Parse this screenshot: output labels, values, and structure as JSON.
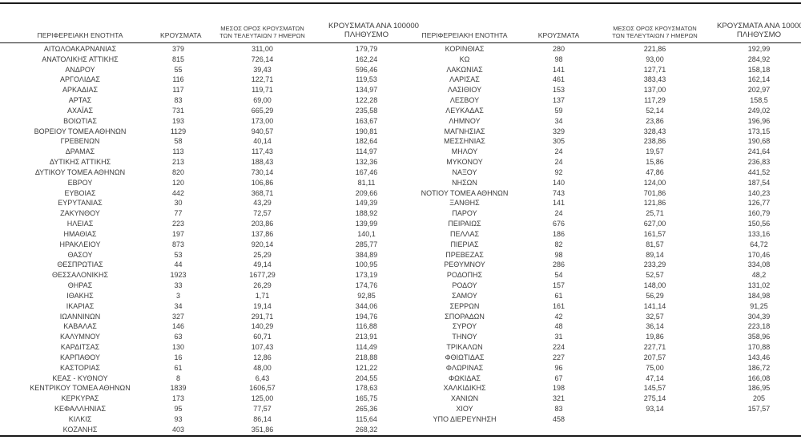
{
  "table": {
    "columns": {
      "region": "ΠΕΡΙΦΕΡΕΙΑΚΗ ΕΝΟΤΗΤΑ",
      "cases": "ΚΡΟΥΣΜΑΤΑ",
      "avg7_line1": "ΜΕΣΟΣ ΟΡΟΣ ΚΡΟΥΣΜΑΤΩΝ",
      "avg7_line2": "ΤΩΝ ΤΕΛΕΥΤΑΙΩΝ 7 ΗΜΕΡΩΝ",
      "per100k_line1": "ΚΡΟΥΣΜΑΤΑ ΑΝΑ 100000",
      "per100k_line2": "ΠΛΗΘΥΣΜΟ"
    },
    "left_rows": [
      [
        "ΑΙΤΩΛΟΑΚΑΡΝΑΝΙΑΣ",
        "379",
        "311,00",
        "179,79"
      ],
      [
        "ΑΝΑΤΟΛΙΚΗΣ ΑΤΤΙΚΗΣ",
        "815",
        "726,14",
        "162,24"
      ],
      [
        "ΑΝΔΡΟΥ",
        "55",
        "39,43",
        "596,46"
      ],
      [
        "ΑΡΓΟΛΙΔΑΣ",
        "116",
        "122,71",
        "119,53"
      ],
      [
        "ΑΡΚΑΔΙΑΣ",
        "117",
        "119,71",
        "134,97"
      ],
      [
        "ΑΡΤΑΣ",
        "83",
        "69,00",
        "122,28"
      ],
      [
        "ΑΧΑΪΑΣ",
        "731",
        "665,29",
        "235,58"
      ],
      [
        "ΒΟΙΩΤΙΑΣ",
        "193",
        "173,00",
        "163,67"
      ],
      [
        "ΒΟΡΕΙΟΥ ΤΟΜΕΑ ΑΘΗΝΩΝ",
        "1129",
        "940,57",
        "190,81"
      ],
      [
        "ΓΡΕΒΕΝΩΝ",
        "58",
        "40,14",
        "182,64"
      ],
      [
        "ΔΡΑΜΑΣ",
        "113",
        "117,43",
        "114,97"
      ],
      [
        "ΔΥΤΙΚΗΣ ΑΤΤΙΚΗΣ",
        "213",
        "188,43",
        "132,36"
      ],
      [
        "ΔΥΤΙΚΟΥ ΤΟΜΕΑ ΑΘΗΝΩΝ",
        "820",
        "730,14",
        "167,46"
      ],
      [
        "ΕΒΡΟΥ",
        "120",
        "106,86",
        "81,11"
      ],
      [
        "ΕΥΒΟΙΑΣ",
        "442",
        "368,71",
        "209,66"
      ],
      [
        "ΕΥΡΥΤΑΝΙΑΣ",
        "30",
        "43,29",
        "149,39"
      ],
      [
        "ΖΑΚΥΝΘΟΥ",
        "77",
        "72,57",
        "188,92"
      ],
      [
        "ΗΛΕΙΑΣ",
        "223",
        "203,86",
        "139,99"
      ],
      [
        "ΗΜΑΘΙΑΣ",
        "197",
        "137,86",
        "140,1"
      ],
      [
        "ΗΡΑΚΛΕΙΟΥ",
        "873",
        "920,14",
        "285,77"
      ],
      [
        "ΘΑΣΟΥ",
        "53",
        "25,29",
        "384,89"
      ],
      [
        "ΘΕΣΠΡΩΤΙΑΣ",
        "44",
        "49,14",
        "100,95"
      ],
      [
        "ΘΕΣΣΑΛΟΝΙΚΗΣ",
        "1923",
        "1677,29",
        "173,19"
      ],
      [
        "ΘΗΡΑΣ",
        "33",
        "26,29",
        "174,76"
      ],
      [
        "ΙΘΑΚΗΣ",
        "3",
        "1,71",
        "92,85"
      ],
      [
        "ΙΚΑΡΙΑΣ",
        "34",
        "19,14",
        "344,06"
      ],
      [
        "ΙΩΑΝΝΙΝΩΝ",
        "327",
        "291,71",
        "194,76"
      ],
      [
        "ΚΑΒΑΛΑΣ",
        "146",
        "140,29",
        "116,88"
      ],
      [
        "ΚΑΛΥΜΝΟΥ",
        "63",
        "60,71",
        "213,91"
      ],
      [
        "ΚΑΡΔΙΤΣΑΣ",
        "130",
        "107,43",
        "114,49"
      ],
      [
        "ΚΑΡΠΑΘΟΥ",
        "16",
        "12,86",
        "218,88"
      ],
      [
        "ΚΑΣΤΟΡΙΑΣ",
        "61",
        "48,00",
        "121,22"
      ],
      [
        "ΚΕΑΣ - ΚΥΘΝΟΥ",
        "8",
        "6,43",
        "204,55"
      ],
      [
        "ΚΕΝΤΡΙΚΟΥ ΤΟΜΕΑ ΑΘΗΝΩΝ",
        "1839",
        "1606,57",
        "178,63"
      ],
      [
        "ΚΕΡΚΥΡΑΣ",
        "173",
        "125,00",
        "165,75"
      ],
      [
        "ΚΕΦΑΛΛΗΝΙΑΣ",
        "95",
        "77,57",
        "265,36"
      ],
      [
        "ΚΙΛΚΙΣ",
        "93",
        "86,14",
        "115,64"
      ],
      [
        "ΚΟΖΑΝΗΣ",
        "403",
        "351,86",
        "268,32"
      ]
    ],
    "right_rows": [
      [
        "ΚΟΡΙΝΘΙΑΣ",
        "280",
        "221,86",
        "192,99"
      ],
      [
        "ΚΩ",
        "98",
        "93,00",
        "284,92"
      ],
      [
        "ΛΑΚΩΝΙΑΣ",
        "141",
        "127,71",
        "158,18"
      ],
      [
        "ΛΑΡΙΣΑΣ",
        "461",
        "383,43",
        "162,14"
      ],
      [
        "ΛΑΣΙΘΙΟΥ",
        "153",
        "137,00",
        "202,97"
      ],
      [
        "ΛΕΣΒΟΥ",
        "137",
        "117,29",
        "158,5"
      ],
      [
        "ΛΕΥΚΑΔΑΣ",
        "59",
        "52,14",
        "249,02"
      ],
      [
        "ΛΗΜΝΟΥ",
        "34",
        "23,86",
        "196,96"
      ],
      [
        "ΜΑΓΝΗΣΙΑΣ",
        "329",
        "328,43",
        "173,15"
      ],
      [
        "ΜΕΣΣΗΝΙΑΣ",
        "305",
        "238,86",
        "190,68"
      ],
      [
        "ΜΗΛΟΥ",
        "24",
        "19,57",
        "241,64"
      ],
      [
        "ΜΥΚΟΝΟΥ",
        "24",
        "15,86",
        "236,83"
      ],
      [
        "ΝΑΞΟΥ",
        "92",
        "47,86",
        "441,52"
      ],
      [
        "ΝΗΣΩΝ",
        "140",
        "124,00",
        "187,54"
      ],
      [
        "ΝΟΤΙΟΥ ΤΟΜΕΑ ΑΘΗΝΩΝ",
        "743",
        "701,86",
        "140,23"
      ],
      [
        "ΞΑΝΘΗΣ",
        "141",
        "121,86",
        "126,77"
      ],
      [
        "ΠΑΡΟΥ",
        "24",
        "25,71",
        "160,79"
      ],
      [
        "ΠΕΙΡΑΙΩΣ",
        "676",
        "627,00",
        "150,56"
      ],
      [
        "ΠΕΛΛΑΣ",
        "186",
        "161,57",
        "133,16"
      ],
      [
        "ΠΙΕΡΙΑΣ",
        "82",
        "81,57",
        "64,72"
      ],
      [
        "ΠΡΕΒΕΖΑΣ",
        "98",
        "89,14",
        "170,46"
      ],
      [
        "ΡΕΘΥΜΝΟΥ",
        "286",
        "233,29",
        "334,08"
      ],
      [
        "ΡΟΔΟΠΗΣ",
        "54",
        "52,57",
        "48,2"
      ],
      [
        "ΡΟΔΟΥ",
        "157",
        "148,00",
        "131,02"
      ],
      [
        "ΣΑΜΟΥ",
        "61",
        "56,29",
        "184,98"
      ],
      [
        "ΣΕΡΡΩΝ",
        "161",
        "141,14",
        "91,25"
      ],
      [
        "ΣΠΟΡΑΔΩΝ",
        "42",
        "32,57",
        "304,39"
      ],
      [
        "ΣΥΡΟΥ",
        "48",
        "36,14",
        "223,18"
      ],
      [
        "ΤΗΝΟΥ",
        "31",
        "19,86",
        "358,96"
      ],
      [
        "ΤΡΙΚΑΛΩΝ",
        "224",
        "227,71",
        "170,88"
      ],
      [
        "ΦΘΙΩΤΙΔΑΣ",
        "227",
        "207,57",
        "143,46"
      ],
      [
        "ΦΛΩΡΙΝΑΣ",
        "96",
        "75,00",
        "186,72"
      ],
      [
        "ΦΩΚΙΔΑΣ",
        "67",
        "47,14",
        "166,08"
      ],
      [
        "ΧΑΛΚΙΔΙΚΗΣ",
        "198",
        "145,57",
        "186,95"
      ],
      [
        "ΧΑΝΙΩΝ",
        "321",
        "275,14",
        "205"
      ],
      [
        "ΧΙΟΥ",
        "83",
        "93,14",
        "157,57"
      ],
      [
        "ΥΠΟ ΔΙΕΡΕΥΝΗΣΗ",
        "458",
        "",
        ""
      ]
    ],
    "colors": {
      "text": "#3b3b3b",
      "rule": "#1a1a1a",
      "background": "#ffffff"
    }
  }
}
